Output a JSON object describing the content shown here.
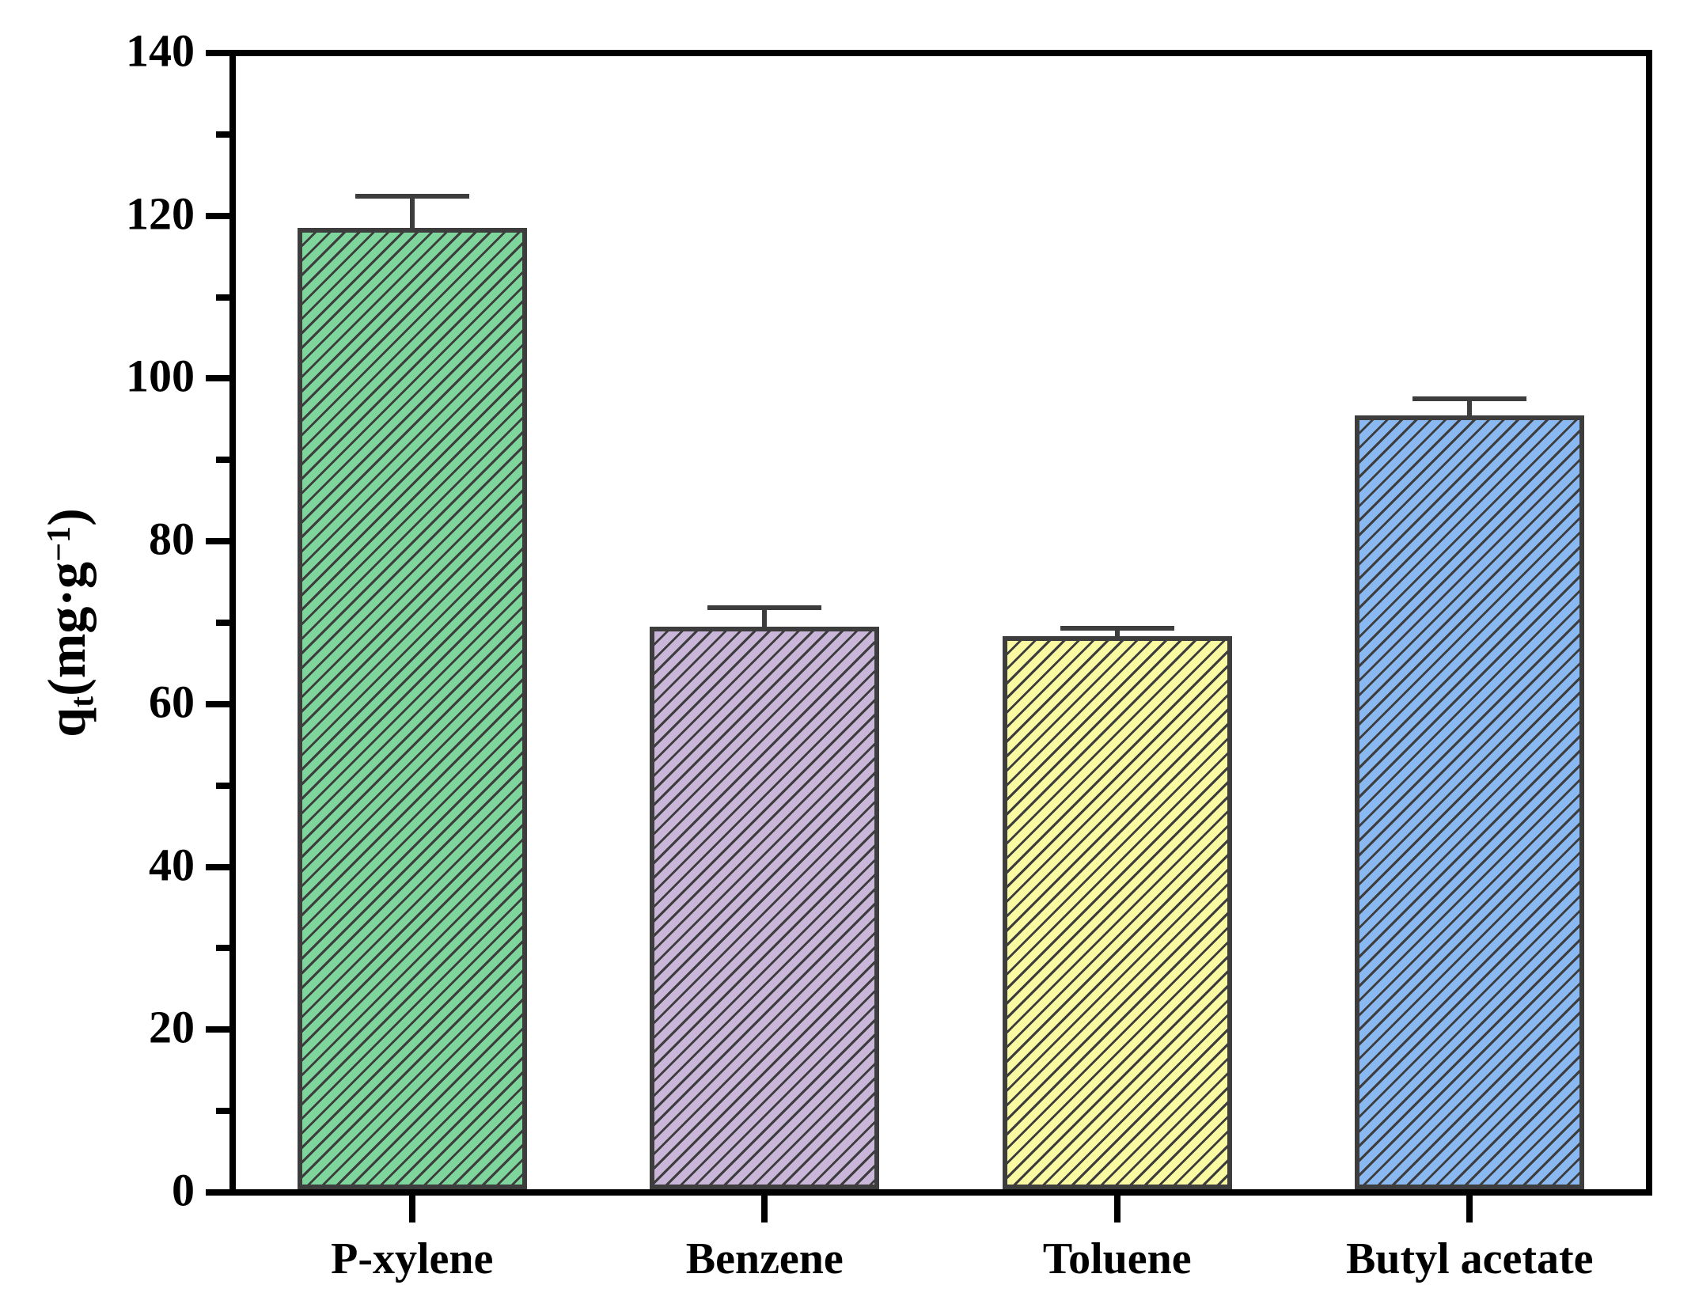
{
  "chart_data": {
    "type": "bar",
    "title": "",
    "categories": [
      "P-xylene",
      "Benzene",
      "Toluene",
      "Butyl acetate"
    ],
    "values": [
      118.8,
      69.5,
      68.3,
      95.6
    ],
    "errors_plus": [
      3.9,
      2.4,
      1.0,
      2.1
    ],
    "bar_fill_colors": [
      "#7fd69d",
      "#c9b6d9",
      "#fafaa2",
      "#8ab8f0"
    ],
    "hatch_style": "/",
    "hatch_color": "#3d3d3d",
    "bar_outline_color": "#3d3d3d",
    "error_bar_color": "#3d3d3d",
    "axis_color": "#000000",
    "background_color": "#ffffff",
    "xlabel": "",
    "ylabel_text": "qt(mg·g−1)",
    "ylabel": {
      "base": "q",
      "sub": "t",
      "open_units": "(mg·g",
      "sup": "−1",
      "close": ")"
    },
    "ylim": [
      0,
      140
    ],
    "ytick_major": [
      0,
      20,
      40,
      60,
      80,
      100,
      120,
      140
    ],
    "ytick_minor": [
      10,
      30,
      50,
      70,
      90,
      110,
      130
    ],
    "grid": false,
    "legend": "none"
  }
}
